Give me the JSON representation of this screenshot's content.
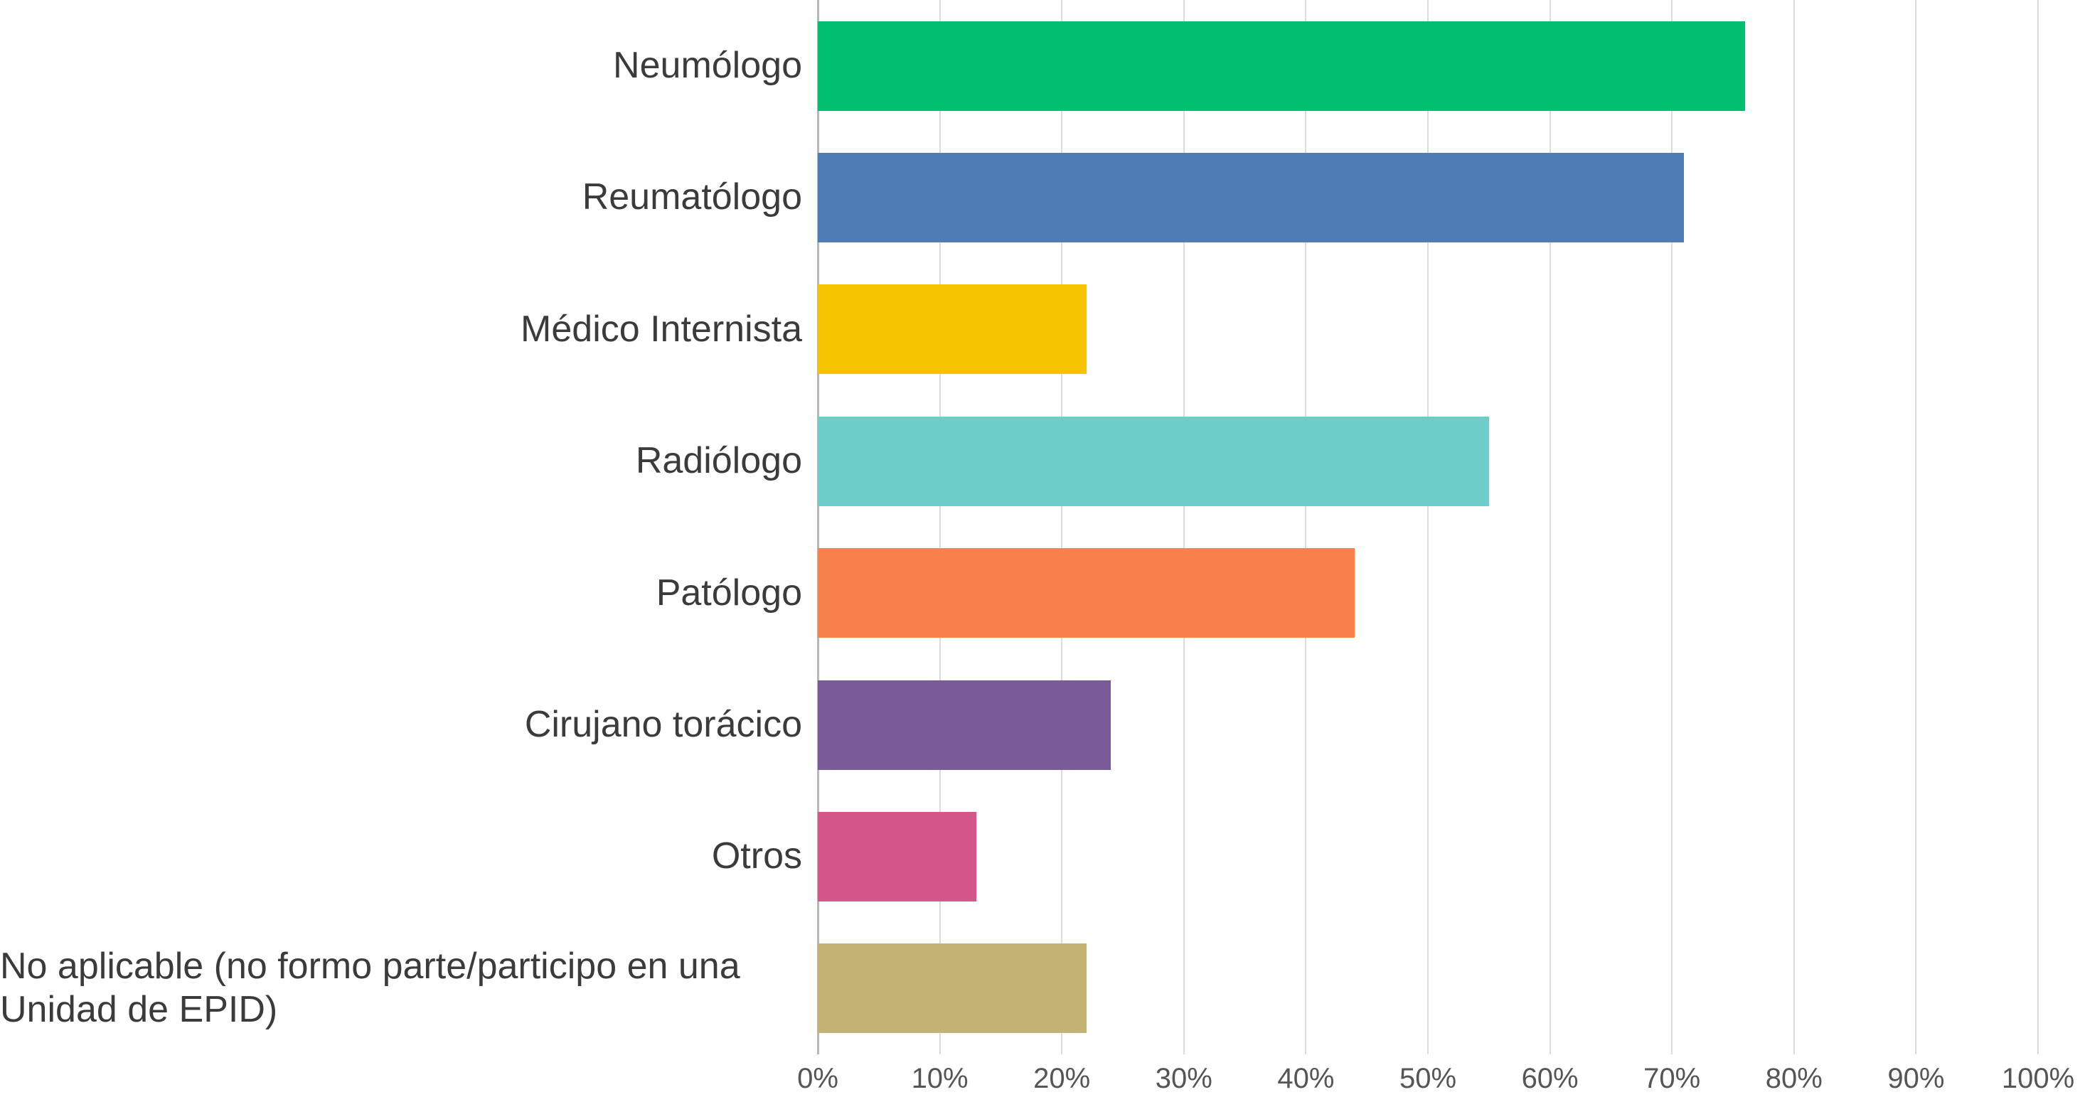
{
  "chart_data": {
    "type": "bar",
    "orientation": "horizontal",
    "title": "",
    "xlabel": "",
    "ylabel": "",
    "unit": "%",
    "xlim": [
      0,
      100
    ],
    "grid": true,
    "legend": "none",
    "categories": [
      "Neumólogo",
      "Reumatólogo",
      "Médico Internista",
      "Radiólogo",
      "Patólogo",
      "Cirujano torácico",
      "Otros",
      "No aplicable (no formo parte/participo en una Unidad de EPID)"
    ],
    "values": [
      76,
      71,
      22,
      55,
      44,
      24,
      13,
      22
    ],
    "bar_colors": [
      "#00BF6F",
      "#507CB6",
      "#F5C400",
      "#6DCDC8",
      "#F8814B",
      "#7A5B97",
      "#D4578A",
      "#C3B273"
    ],
    "x_ticks": [
      "0%",
      "10%",
      "20%",
      "30%",
      "40%",
      "50%",
      "60%",
      "70%",
      "80%",
      "90%",
      "100%"
    ],
    "x_tick_values": [
      0,
      10,
      20,
      30,
      40,
      50,
      60,
      70,
      80,
      90,
      100
    ],
    "colors": {
      "background": "#ffffff",
      "gridline": "#dcdcdc",
      "axis_line": "#b7b7b7",
      "category_label": "#3b3b3b",
      "tick_label": "#555555"
    }
  }
}
